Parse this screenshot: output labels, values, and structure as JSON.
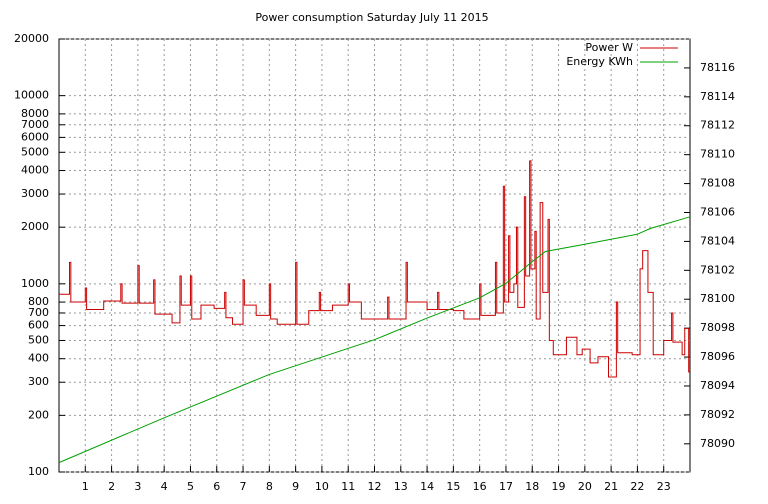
{
  "chart_data": {
    "type": "line",
    "title": "Power consumption Saturday July 11 2015",
    "xlim": [
      0,
      24
    ],
    "xticks": [
      1,
      2,
      3,
      4,
      5,
      6,
      7,
      8,
      9,
      10,
      11,
      12,
      13,
      14,
      15,
      16,
      17,
      18,
      19,
      20,
      21,
      22,
      23
    ],
    "ylim": [
      100,
      20000
    ],
    "ylog": true,
    "yticks": [
      100,
      200,
      300,
      400,
      500,
      600,
      700,
      800,
      1000,
      2000,
      3000,
      4000,
      5000,
      6000,
      7000,
      8000,
      10000,
      20000
    ],
    "y2lim": [
      78088.05,
      78118
    ],
    "y2ticks": [
      78090,
      78092,
      78094,
      78096,
      78098,
      78100,
      78102,
      78104,
      78106,
      78108,
      78110,
      78112,
      78114,
      78116
    ],
    "grid": true,
    "legend": "top-right",
    "series": [
      {
        "name": "Power W",
        "color": "#cc0000",
        "steps": true,
        "x": [
          0,
          0.4,
          0.45,
          1.0,
          1.05,
          1.7,
          2.35,
          2.4,
          3.0,
          3.05,
          3.6,
          3.65,
          4.3,
          4.6,
          4.65,
          5.0,
          5.05,
          5.4,
          5.9,
          6.3,
          6.35,
          6.6,
          7.0,
          7.05,
          7.5,
          8.0,
          8.05,
          8.3,
          9.0,
          9.05,
          9.5,
          9.9,
          9.95,
          10.4,
          11.0,
          11.05,
          11.5,
          12.5,
          12.55,
          13.2,
          13.25,
          14.0,
          14.4,
          14.45,
          15.0,
          15.4,
          16.0,
          16.05,
          16.6,
          16.65,
          16.9,
          16.95,
          17.1,
          17.15,
          17.3,
          17.4,
          17.45,
          17.7,
          17.75,
          17.9,
          17.95,
          18.1,
          18.15,
          18.3,
          18.4,
          18.6,
          18.65,
          18.8,
          19.3,
          19.7,
          19.9,
          20.2,
          20.5,
          20.9,
          21.2,
          21.25,
          21.8,
          22.1,
          22.2,
          22.4,
          22.6,
          23.0,
          23.3,
          23.35,
          23.7,
          23.8,
          23.95,
          24
        ],
        "values": [
          880,
          1300,
          800,
          950,
          730,
          810,
          1000,
          790,
          1250,
          790,
          1050,
          690,
          620,
          1100,
          770,
          1100,
          650,
          770,
          740,
          900,
          660,
          610,
          1050,
          770,
          680,
          1000,
          650,
          610,
          1300,
          610,
          720,
          900,
          720,
          770,
          1000,
          800,
          650,
          850,
          650,
          1300,
          800,
          730,
          900,
          730,
          720,
          650,
          1000,
          680,
          1300,
          700,
          3300,
          800,
          1800,
          900,
          1000,
          2000,
          750,
          2900,
          1100,
          4500,
          1200,
          1900,
          650,
          2700,
          900,
          2200,
          500,
          420,
          520,
          420,
          450,
          380,
          410,
          320,
          800,
          430,
          420,
          1200,
          1500,
          900,
          420,
          500,
          700,
          490,
          420,
          580,
          340,
          340
        ]
      },
      {
        "name": "Energy KWh",
        "color": "#00a000",
        "axis": "y2",
        "x": [
          0,
          4,
          8,
          10,
          12,
          14,
          16,
          17,
          18,
          18.5,
          20,
          22,
          22.5,
          24
        ],
        "values": [
          78088.7,
          78091.8,
          78094.8,
          78096.0,
          78097.2,
          78098.7,
          78100.1,
          78101.1,
          78102.6,
          78103.3,
          78103.8,
          78104.5,
          78104.9,
          78105.7
        ]
      }
    ]
  }
}
